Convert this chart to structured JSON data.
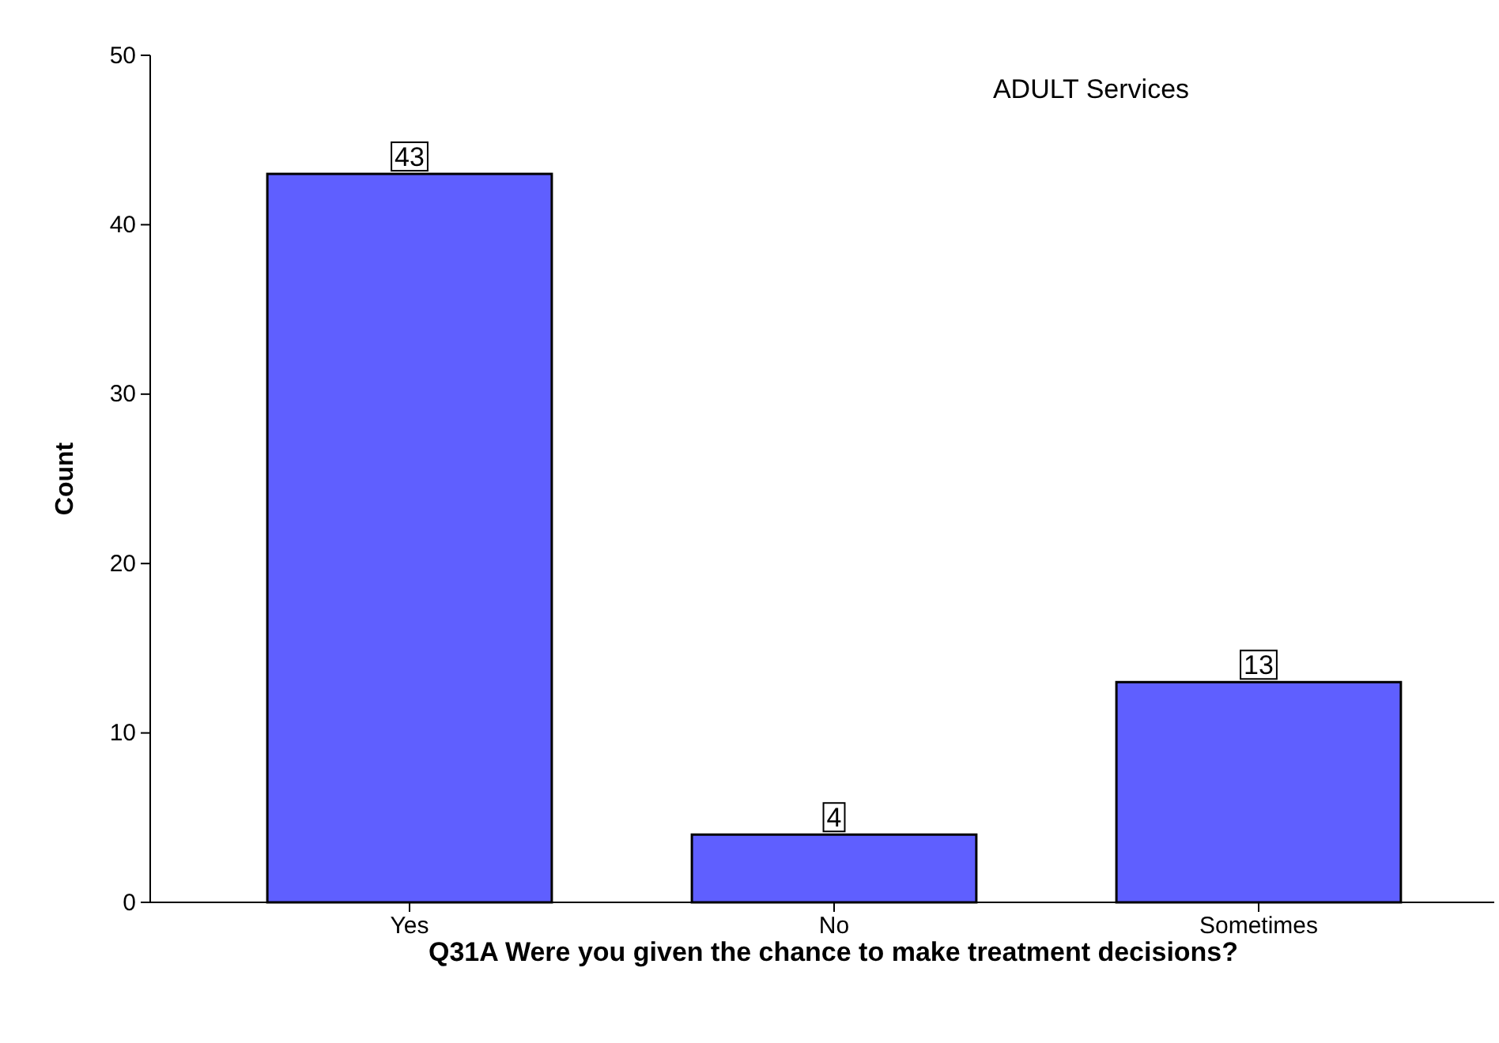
{
  "chart_data": {
    "type": "bar",
    "title": "ADULT Services",
    "categories": [
      "Yes",
      "No",
      "Sometimes"
    ],
    "values": [
      43,
      4,
      13
    ],
    "color": "#5f5fff",
    "ylim": [
      0,
      50
    ],
    "yticks": [
      0,
      10,
      20,
      30,
      40,
      50
    ],
    "ylabel": "Count",
    "xlabel": "Q31A Were you given the chance to make treatment decisions?",
    "data_labels": true,
    "grid": false
  }
}
